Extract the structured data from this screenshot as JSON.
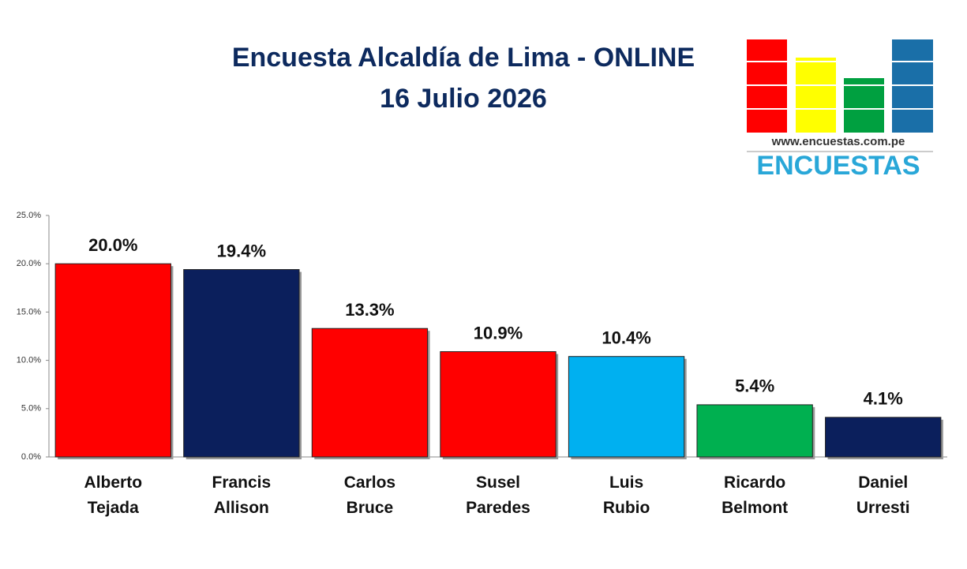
{
  "chart_data": {
    "type": "bar",
    "title": "Encuesta Alcaldía de Lima - ONLINE",
    "subtitle": "16 Julio 2026",
    "categories": [
      "Alberto Tejada",
      "Francis Allison",
      "Carlos Bruce",
      "Susel Paredes",
      "Luis Rubio",
      "Ricardo Belmont",
      "Daniel Urresti"
    ],
    "values": [
      20.0,
      19.4,
      13.3,
      10.9,
      10.4,
      5.4,
      4.1
    ],
    "value_labels": [
      "20.0%",
      "19.4%",
      "13.3%",
      "10.9%",
      "10.4%",
      "5.4%",
      "4.1%"
    ],
    "colors": [
      "#ff0000",
      "#0b1f5c",
      "#ff0000",
      "#ff0000",
      "#00b0f0",
      "#00b050",
      "#0b1f5c"
    ],
    "ylim": [
      0,
      25
    ],
    "yticks": [
      {
        "value": 0,
        "label": "0.0%"
      },
      {
        "value": 5,
        "label": "5.0%"
      },
      {
        "value": 10,
        "label": "10.0%"
      },
      {
        "value": 15,
        "label": "15.0%"
      },
      {
        "value": 20,
        "label": "20.0%"
      },
      {
        "value": 25,
        "label": "25.0%"
      }
    ],
    "grid": false
  },
  "logo": {
    "url": "www.encuestas.com.pe",
    "name": "ENCUESTAS"
  }
}
